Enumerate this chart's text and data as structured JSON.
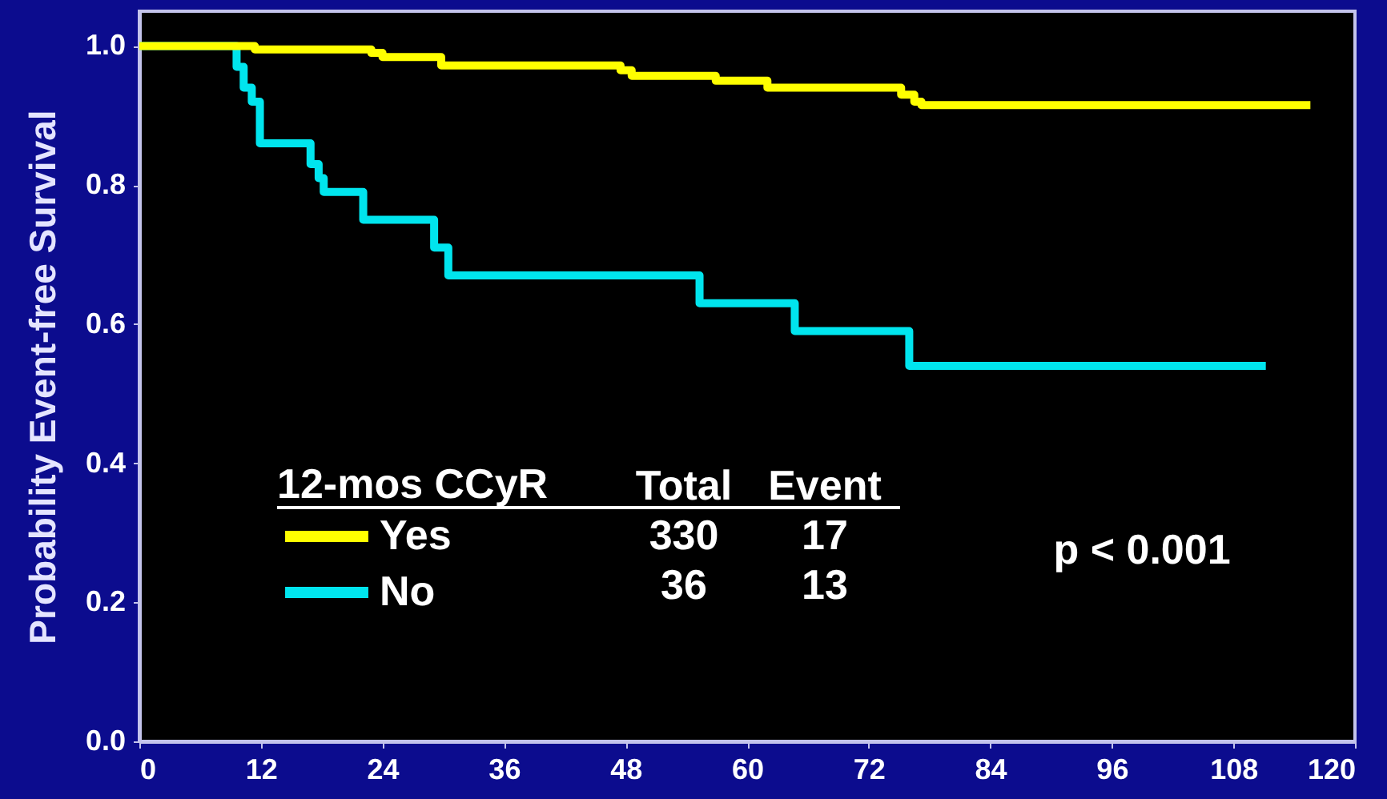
{
  "chart_data": {
    "type": "step",
    "ylabel": "Probability Event-free Survival",
    "legend_title": "12-mos CCyR",
    "legend": "bottom left",
    "xlim": [
      0,
      120
    ],
    "xticks": [
      0,
      12,
      24,
      36,
      48,
      60,
      72,
      84,
      96,
      108,
      120
    ],
    "ylim": [
      0,
      1.05
    ],
    "yticks": [
      {
        "value": 0,
        "label": "0.0"
      },
      0.2,
      0.4,
      0.6,
      0.8,
      {
        "value": 1,
        "label": "1.0"
      }
    ],
    "series": [
      {
        "name": "Yes",
        "color": "#ffff00",
        "x": [
          0,
          11.4,
          22.9,
          24,
          29.8,
          47.5,
          48.6,
          56.9,
          62,
          75.2,
          76.5,
          77.2,
          115.6
        ],
        "values": [
          1.0,
          0.995,
          0.99,
          0.984,
          0.972,
          0.965,
          0.957,
          0.95,
          0.94,
          0.93,
          0.92,
          0.915,
          0.915
        ]
      },
      {
        "name": "No",
        "color": "#00e5ee",
        "x": [
          0,
          9.6,
          10.3,
          11.1,
          11.9,
          16.9,
          17.7,
          18.2,
          22.1,
          29.1,
          30.5,
          55.3,
          64.7,
          76.0,
          111.2
        ],
        "values": [
          1.0,
          0.97,
          0.94,
          0.92,
          0.86,
          0.83,
          0.81,
          0.79,
          0.75,
          0.71,
          0.67,
          0.63,
          0.59,
          0.54,
          0.54
        ]
      }
    ],
    "annotations": [
      "Total",
      "Event",
      "330",
      "17",
      "36",
      "13",
      "p < 0.001"
    ]
  }
}
